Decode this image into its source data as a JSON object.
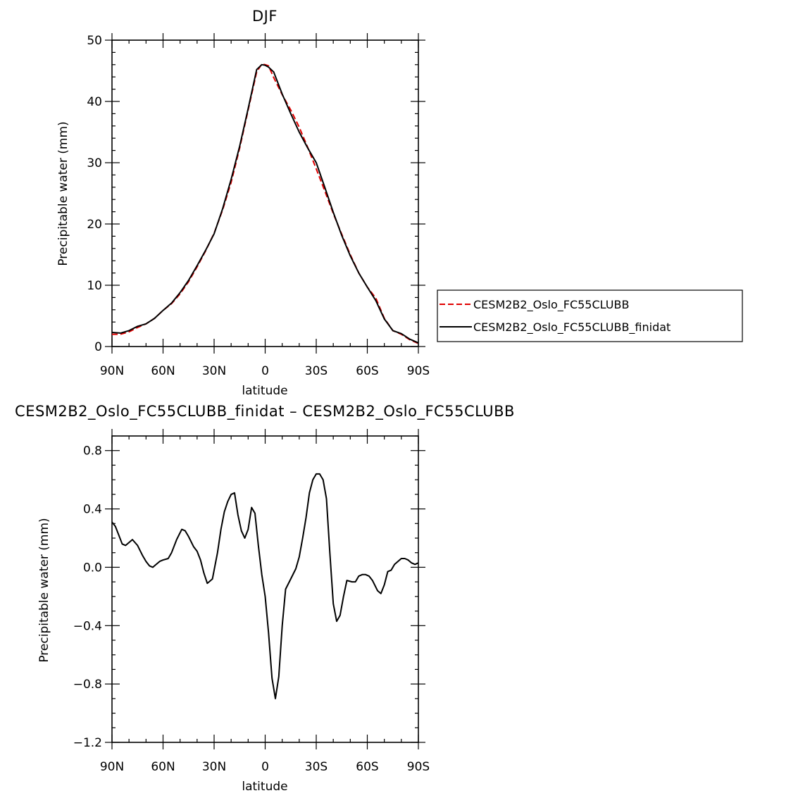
{
  "chart_data": [
    {
      "type": "line",
      "title": "DJF",
      "xlabel": "latitude",
      "ylabel": "Precipitable water (mm)",
      "xlim": [
        90,
        -90
      ],
      "ylim": [
        0,
        50
      ],
      "x_ticks": [
        90,
        60,
        30,
        0,
        -30,
        -60,
        -90
      ],
      "x_tick_labels": [
        "90N",
        "60N",
        "30N",
        "0",
        "30S",
        "60S",
        "90S"
      ],
      "y_ticks": [
        0,
        10,
        20,
        30,
        40,
        50
      ],
      "y_tick_labels": [
        "0",
        "10",
        "20",
        "30",
        "40",
        "50"
      ],
      "legend_position": "right",
      "x": [
        90,
        85,
        80,
        75,
        70,
        65,
        60,
        55,
        50,
        45,
        40,
        35,
        30,
        25,
        20,
        15,
        10,
        5,
        2,
        0,
        -2,
        -5,
        -10,
        -15,
        -20,
        -25,
        -30,
        -35,
        -40,
        -45,
        -50,
        -55,
        -60,
        -65,
        -70,
        -75,
        -80,
        -85,
        -90
      ],
      "series": [
        {
          "name": "CESM2B2_Oslo_FC55CLUBB",
          "color": "#e00000",
          "dash": "dashed",
          "values": [
            2.0,
            2.0,
            2.4,
            3.1,
            3.7,
            4.6,
            5.9,
            7.0,
            8.6,
            10.6,
            13.0,
            15.6,
            18.5,
            22.3,
            26.8,
            32.4,
            38.6,
            44.8,
            46.1,
            46.0,
            45.8,
            43.9,
            41.1,
            38.6,
            35.8,
            32.5,
            29.0,
            25.4,
            21.7,
            18.3,
            15.0,
            12.0,
            9.7,
            7.9,
            4.6,
            2.6,
            2.0,
            1.1,
            0.5
          ]
        },
        {
          "name": "CESM2B2_Oslo_FC55CLUBB_finidat",
          "color": "#000000",
          "dash": "solid",
          "values": [
            2.3,
            2.2,
            2.6,
            3.3,
            3.7,
            4.6,
            5.9,
            7.1,
            8.8,
            10.8,
            13.2,
            15.7,
            18.4,
            22.5,
            27.3,
            32.7,
            38.8,
            45.2,
            46.0,
            45.9,
            45.6,
            44.8,
            41.2,
            38.0,
            35.0,
            32.4,
            30.0,
            26.0,
            21.9,
            18.1,
            14.8,
            12.0,
            9.7,
            7.5,
            4.5,
            2.6,
            2.1,
            1.2,
            0.6
          ]
        }
      ]
    },
    {
      "type": "line",
      "title": "CESM2B2_Oslo_FC55CLUBB_finidat – CESM2B2_Oslo_FC55CLUBB",
      "xlabel": "latitude",
      "ylabel": "Precipitable water (mm)",
      "xlim": [
        90,
        -90
      ],
      "ylim": [
        -1.2,
        0.9
      ],
      "x_ticks": [
        90,
        60,
        30,
        0,
        -30,
        -60,
        -90
      ],
      "x_tick_labels": [
        "90N",
        "60N",
        "30N",
        "0",
        "30S",
        "60S",
        "90S"
      ],
      "y_ticks": [
        0.8,
        0.4,
        0.0,
        -0.4,
        -0.8,
        -1.2
      ],
      "y_tick_labels": [
        "0.8",
        "0.4",
        "0.0",
        "−0.4",
        "−0.8",
        "−1.2"
      ],
      "x": [
        90,
        88,
        86,
        84,
        82,
        80,
        78,
        75,
        72,
        70,
        68,
        66,
        64,
        62,
        60,
        57,
        55,
        52,
        49,
        47,
        45,
        42,
        40,
        38,
        36,
        34,
        31,
        28,
        26,
        24,
        22,
        20,
        18,
        16,
        14,
        12,
        10,
        8,
        6,
        4,
        2,
        0,
        -2,
        -4,
        -6,
        -8,
        -10,
        -12,
        -15,
        -18,
        -20,
        -22,
        -24,
        -26,
        -28,
        -30,
        -32,
        -34,
        -36,
        -38,
        -40,
        -42,
        -44,
        -46,
        -48,
        -51,
        -53,
        -55,
        -57,
        -59,
        -61,
        -63,
        -66,
        -68,
        -70,
        -72,
        -74,
        -76,
        -78,
        -80,
        -82,
        -84,
        -86,
        -88,
        -90
      ],
      "series": [
        {
          "name": "",
          "color": "#000000",
          "dash": "solid",
          "values": [
            0.31,
            0.28,
            0.22,
            0.16,
            0.15,
            0.17,
            0.19,
            0.15,
            0.08,
            0.04,
            0.01,
            0.0,
            0.02,
            0.04,
            0.05,
            0.06,
            0.1,
            0.19,
            0.26,
            0.25,
            0.21,
            0.14,
            0.11,
            0.05,
            -0.04,
            -0.11,
            -0.08,
            0.1,
            0.26,
            0.38,
            0.45,
            0.5,
            0.51,
            0.36,
            0.25,
            0.2,
            0.26,
            0.41,
            0.37,
            0.15,
            -0.05,
            -0.2,
            -0.45,
            -0.76,
            -0.9,
            -0.75,
            -0.4,
            -0.15,
            -0.08,
            -0.01,
            0.07,
            0.2,
            0.34,
            0.51,
            0.6,
            0.64,
            0.64,
            0.6,
            0.47,
            0.1,
            -0.25,
            -0.37,
            -0.33,
            -0.2,
            -0.09,
            -0.1,
            -0.1,
            -0.06,
            -0.05,
            -0.05,
            -0.06,
            -0.09,
            -0.16,
            -0.18,
            -0.12,
            -0.03,
            -0.02,
            0.02,
            0.04,
            0.06,
            0.06,
            0.05,
            0.03,
            0.02,
            0.03
          ]
        }
      ]
    }
  ]
}
